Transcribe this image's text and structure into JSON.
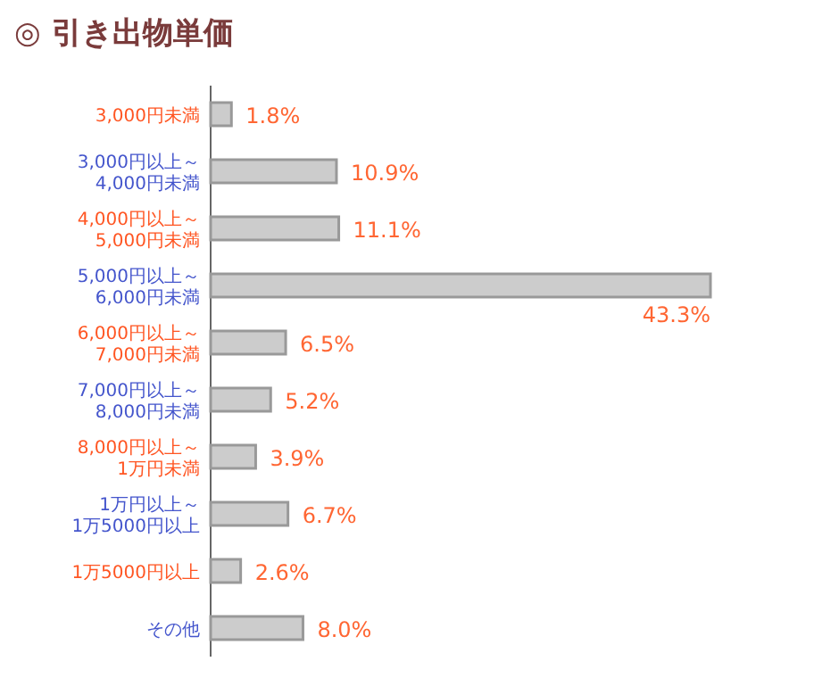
{
  "chart_data": {
    "type": "bar",
    "orientation": "horizontal",
    "title": "◎ 引き出物単価",
    "categories": [
      "3,000円未満",
      "3,000円以上～\n4,000円未満",
      "4,000円以上～\n5,000円未満",
      "5,000円以上～\n6,000円未満",
      "6,000円以上～\n7,000円未満",
      "7,000円以上～\n8,000円未満",
      "8,000円以上～\n1万円未満",
      "1万円以上～\n1万5000円以上",
      "1万5000円以上",
      "その他"
    ],
    "values": [
      1.8,
      10.9,
      11.1,
      43.3,
      6.5,
      5.2,
      3.9,
      6.7,
      2.6,
      8.0
    ],
    "value_labels": [
      "1.8%",
      "10.9%",
      "11.1%",
      "43.3%",
      "6.5%",
      "5.2%",
      "3.9%",
      "6.7%",
      "2.6%",
      "8.0%"
    ],
    "color": "#cccccc"
  }
}
